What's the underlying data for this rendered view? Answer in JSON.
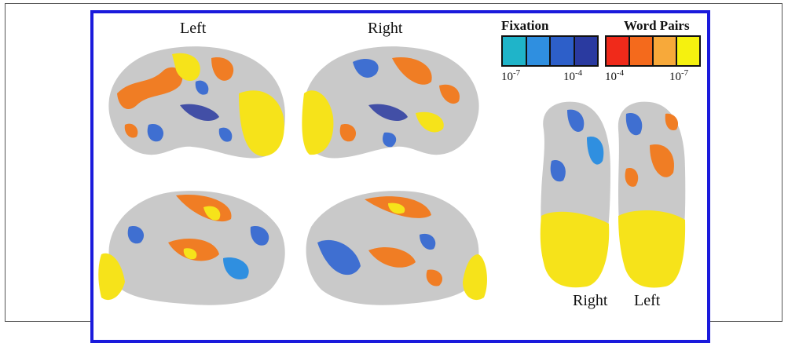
{
  "labels": {
    "lateral_left": "Left",
    "lateral_right": "Right",
    "ventral_right": "Right",
    "ventral_left": "Left"
  },
  "legend": {
    "fixation": {
      "title": "Fixation",
      "colors": [
        "#1fb4c9",
        "#2f8fe0",
        "#2d5fc9",
        "#2a3aa0"
      ],
      "min_label": "10",
      "min_exp": "-7",
      "max_label": "10",
      "max_exp": "-4"
    },
    "word_pairs": {
      "title": "Word Pairs",
      "colors": [
        "#f02a1a",
        "#f46a1c",
        "#f7a93a",
        "#f5f10f"
      ],
      "min_label": "10",
      "min_exp": "-4",
      "max_label": "10",
      "max_exp": "-7"
    }
  },
  "colors": {
    "frame": "#1a1adc",
    "cortex": "#c9c9c9",
    "fixation_blue": "#3f6fd1",
    "words_orange": "#f07d24",
    "words_yellow": "#f6e31a"
  }
}
